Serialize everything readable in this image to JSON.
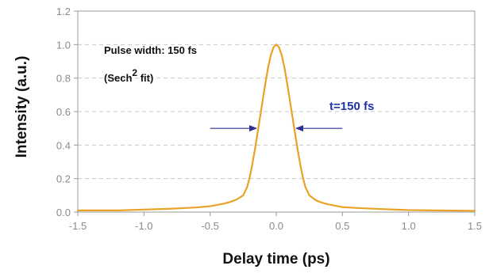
{
  "chart_data": {
    "type": "line",
    "xlabel": "Delay time (ps)",
    "ylabel": "Intensity (a.u.)",
    "xlim": [
      -1.5,
      1.5
    ],
    "ylim": [
      0.0,
      1.2
    ],
    "xticks": [
      -1.5,
      -1.0,
      -0.5,
      0.0,
      0.5,
      1.0,
      1.5
    ],
    "xtick_labels": [
      "-1.5",
      "-1.0",
      "-0.5",
      "0.0",
      "0.5",
      "1.0",
      "1.5"
    ],
    "yticks": [
      0.0,
      0.2,
      0.4,
      0.6,
      0.8,
      1.0,
      1.2
    ],
    "ytick_labels": [
      "0.0",
      "0.2",
      "0.4",
      "0.6",
      "0.8",
      "1.0",
      "1.2"
    ],
    "grid": "horizontal dashed",
    "annotations": {
      "pulse_width": "Pulse width: 150 fs",
      "fit_prefix": "(Sech",
      "fit_sup": "2",
      "fit_suffix": " fit)",
      "fwhm_label": "t=150 fs"
    },
    "fwhm_marker": {
      "y": 0.5,
      "left_arrow_from": -0.5,
      "left_arrow_to": -0.15,
      "right_arrow_from": 0.5,
      "right_arrow_to": 0.15
    },
    "series": [
      {
        "x": [
          -1.5,
          -1.2,
          -1.0,
          -0.8,
          -0.6,
          -0.5,
          -0.4,
          -0.35,
          -0.3,
          -0.25,
          -0.22,
          -0.2,
          -0.18,
          -0.16,
          -0.14,
          -0.12,
          -0.1,
          -0.08,
          -0.06,
          -0.04,
          -0.02,
          0.0,
          0.02,
          0.04,
          0.06,
          0.08,
          0.1,
          0.12,
          0.14,
          0.16,
          0.18,
          0.2,
          0.22,
          0.25,
          0.3,
          0.35,
          0.4,
          0.5,
          0.6,
          0.8,
          1.0,
          1.2,
          1.5
        ],
        "y": [
          0.01,
          0.01,
          0.015,
          0.02,
          0.028,
          0.035,
          0.05,
          0.06,
          0.075,
          0.1,
          0.15,
          0.21,
          0.29,
          0.38,
          0.48,
          0.58,
          0.68,
          0.78,
          0.87,
          0.94,
          0.985,
          1.0,
          0.985,
          0.94,
          0.87,
          0.78,
          0.68,
          0.58,
          0.48,
          0.38,
          0.29,
          0.21,
          0.15,
          0.1,
          0.07,
          0.055,
          0.045,
          0.03,
          0.025,
          0.018,
          0.012,
          0.01,
          0.008
        ]
      }
    ],
    "colors": {
      "line": "#e8a227",
      "arrow": "#2b2f8f",
      "fwhm_text": "#2233aa",
      "grid": "#c8c8c8",
      "frame": "#9a9a9a"
    }
  }
}
